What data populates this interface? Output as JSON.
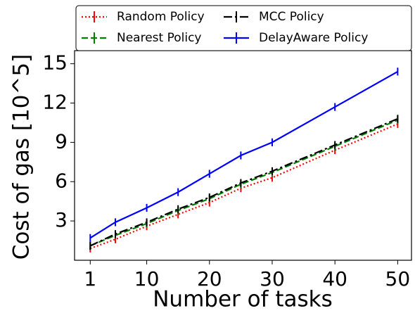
{
  "chart_data": {
    "type": "line",
    "x_label": "Number of tasks",
    "y_label": "Cost of gas [10^5]",
    "x": [
      1,
      5,
      10,
      15,
      20,
      25,
      30,
      40,
      50
    ],
    "xlim": [
      -1.5,
      52.2
    ],
    "xticks": [
      1,
      10,
      20,
      30,
      40,
      50
    ],
    "ylim": [
      0,
      16
    ],
    "yticks": [
      3,
      6,
      9,
      12,
      15
    ],
    "grid": false,
    "legend": "top",
    "series": [
      {
        "name": "Random Policy",
        "color": "#ff0000",
        "dash": "dotted",
        "values": [
          0.9,
          1.6,
          2.6,
          3.5,
          4.4,
          5.5,
          6.3,
          8.4,
          10.4
        ],
        "errors": [
          0.3,
          0.3,
          0.3,
          0.3,
          0.3,
          0.3,
          0.3,
          0.3,
          0.3
        ]
      },
      {
        "name": "Nearest Policy",
        "color": "#008000",
        "dash": "dashed",
        "values": [
          1.1,
          1.9,
          2.8,
          3.8,
          4.7,
          5.8,
          6.7,
          8.7,
          10.7
        ],
        "errors": [
          0.3,
          0.3,
          0.3,
          0.3,
          0.3,
          0.3,
          0.3,
          0.3,
          0.3
        ]
      },
      {
        "name": "MCC Policy",
        "color": "#000000",
        "dash": "dashdot",
        "values": [
          1.1,
          2.0,
          2.9,
          3.9,
          4.8,
          5.9,
          6.8,
          8.8,
          10.8
        ],
        "errors": [
          0.3,
          0.3,
          0.3,
          0.3,
          0.3,
          0.3,
          0.3,
          0.3,
          0.3
        ]
      },
      {
        "name": "DelayAware Policy",
        "color": "#0000ff",
        "dash": "solid",
        "values": [
          1.7,
          2.9,
          4.0,
          5.2,
          6.6,
          8.0,
          9.0,
          11.7,
          14.4
        ],
        "errors": [
          0.3,
          0.3,
          0.3,
          0.3,
          0.3,
          0.3,
          0.3,
          0.3,
          0.3
        ]
      }
    ]
  }
}
